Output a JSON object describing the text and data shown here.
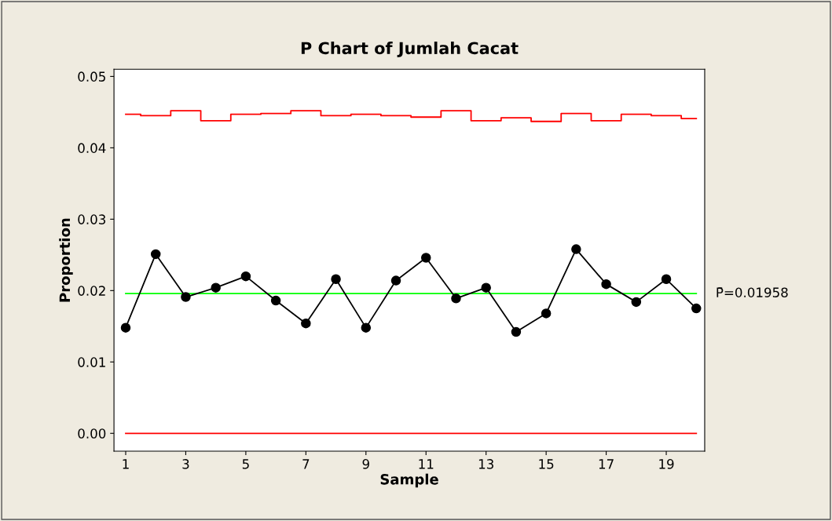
{
  "chart_data": {
    "type": "line",
    "title": "P Chart of Jumlah Cacat",
    "xlabel": "Sample",
    "ylabel": "Proportion",
    "x": [
      1,
      2,
      3,
      4,
      5,
      6,
      7,
      8,
      9,
      10,
      11,
      12,
      13,
      14,
      15,
      16,
      17,
      18,
      19,
      20
    ],
    "series": [
      {
        "type": "step",
        "color": "#ff0000",
        "marker": "none",
        "values": [
          0.0447,
          0.0445,
          0.0452,
          0.0438,
          0.0447,
          0.0448,
          0.0452,
          0.0445,
          0.0447,
          0.0445,
          0.0443,
          0.0452,
          0.0438,
          0.0442,
          0.0437,
          0.0448,
          0.0438,
          0.0447,
          0.0445,
          0.0441
        ]
      },
      {
        "color": "#000000",
        "marker": "circle",
        "values": [
          0.0148,
          0.0251,
          0.0191,
          0.0204,
          0.022,
          0.0186,
          0.0154,
          0.0216,
          0.0148,
          0.0214,
          0.0246,
          0.0189,
          0.0204,
          0.0142,
          0.0168,
          0.0258,
          0.0209,
          0.0184,
          0.0216,
          0.0175
        ]
      }
    ],
    "ref_lines": [
      {
        "axis": "y",
        "value": 0.01958,
        "label": "P̄=0.01958",
        "color": "#00ff00"
      },
      {
        "axis": "y",
        "value": 0,
        "color": "#ff0000"
      }
    ],
    "xlim": [
      0.61,
      20.28
    ],
    "xticks": [
      1,
      3,
      5,
      7,
      9,
      11,
      13,
      15,
      17,
      19
    ],
    "ylim": [
      -0.0025,
      0.051
    ],
    "yticks": [
      {
        "value": 0,
        "label": "0.00"
      },
      {
        "value": 0.01,
        "label": "0.01"
      },
      {
        "value": 0.02,
        "label": "0.02"
      },
      {
        "value": 0.03,
        "label": "0.03"
      },
      {
        "value": 0.04,
        "label": "0.04"
      },
      {
        "value": 0.05,
        "label": "0.05"
      }
    ],
    "grid": false,
    "legend": false
  }
}
